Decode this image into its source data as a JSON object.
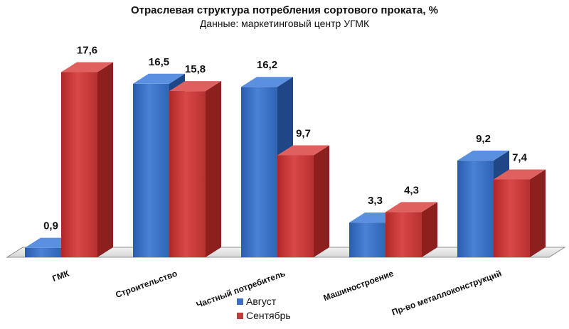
{
  "chart_data": {
    "type": "bar",
    "title": "Отраслевая структура потребления сортового проката, %",
    "subtitle": "Данные: маркетинговый центр УГМК",
    "categories": [
      "ГМК",
      "Строительство",
      "Частный потребитель",
      "Машиностроение",
      "Пр-во металлоконструкций"
    ],
    "series": [
      {
        "name": "Август",
        "values": [
          0.9,
          16.5,
          16.2,
          3.3,
          9.2
        ],
        "value_labels": [
          "0,9",
          "16,5",
          "16,2",
          "3,3",
          "9,2"
        ],
        "color": "#3a6fc4"
      },
      {
        "name": "Сентябрь",
        "values": [
          17.6,
          15.8,
          9.7,
          4.3,
          7.4
        ],
        "value_labels": [
          "17,6",
          "15,8",
          "9,7",
          "4,3",
          "7,4"
        ],
        "color": "#c83a3a"
      }
    ],
    "ylim": [
      0,
      20
    ],
    "grid": false,
    "legend_position": "bottom-center",
    "style": "3d-column"
  }
}
